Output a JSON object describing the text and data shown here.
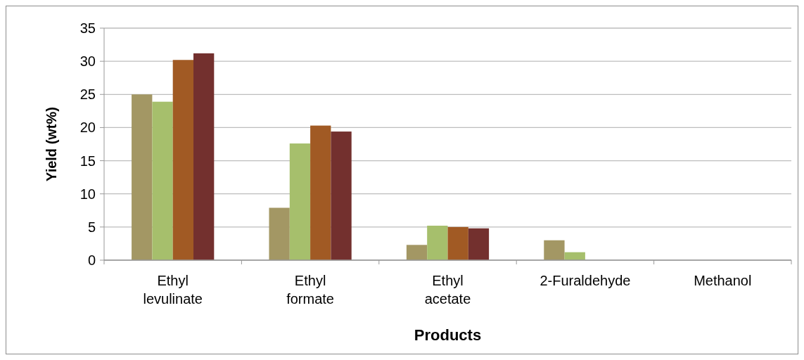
{
  "chart_data": {
    "type": "bar",
    "xlabel": "Products",
    "ylabel": "Yield (wt%)",
    "categories": [
      "Ethyl levulinate",
      "Ethyl formate",
      "Ethyl acetate",
      "2-Furaldehyde",
      "Methanol"
    ],
    "series": [
      {
        "color": "#a39764",
        "values": [
          25,
          7.9,
          2.3,
          3.0,
          0
        ]
      },
      {
        "color": "#a6bf6c",
        "values": [
          23.9,
          17.6,
          5.2,
          1.2,
          0
        ]
      },
      {
        "color": "#a15a24",
        "values": [
          30.2,
          20.3,
          5.0,
          0,
          0
        ]
      },
      {
        "color": "#73302e",
        "values": [
          31.2,
          19.4,
          4.8,
          0,
          0
        ]
      }
    ],
    "ylim": [
      0,
      35
    ],
    "yticks": [
      0,
      5,
      10,
      15,
      20,
      25,
      30,
      35
    ],
    "grid": "y"
  }
}
